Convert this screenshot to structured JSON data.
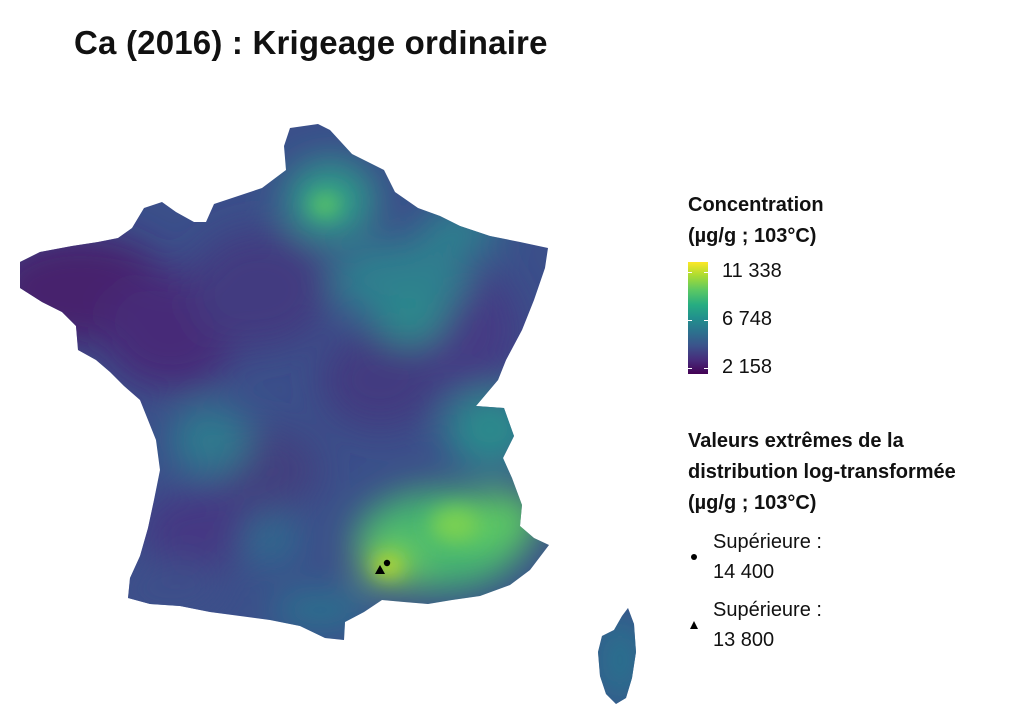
{
  "title": "Ca (2016) : Krigeage ordinaire",
  "legend": {
    "concentration_title_1": "Concentration",
    "concentration_title_2": "(µg/g ; 103°C)",
    "scale_max": 11338,
    "scale_min": 2158,
    "ticks": [
      {
        "label": "11 338",
        "value": 11338
      },
      {
        "label": "6 748",
        "value": 6748
      },
      {
        "label": "2 158",
        "value": 2158
      }
    ],
    "colormap": "viridis",
    "extremes_title_1": "Valeurs extrêmes de la",
    "extremes_title_2": "distribution log-transformée",
    "extremes_title_3": "(µg/g ; 103°C)",
    "extremes": [
      {
        "symbol": "circle-icon",
        "line1": "Supérieure :",
        "line2": "14 400"
      },
      {
        "symbol": "triangle-icon",
        "line1": "Supérieure :",
        "line2": "13 800"
      }
    ]
  },
  "colors": {
    "viridis_low": "#440154",
    "viridis_mid": "#21908d",
    "viridis_high": "#fde725",
    "marker": "#000000"
  }
}
